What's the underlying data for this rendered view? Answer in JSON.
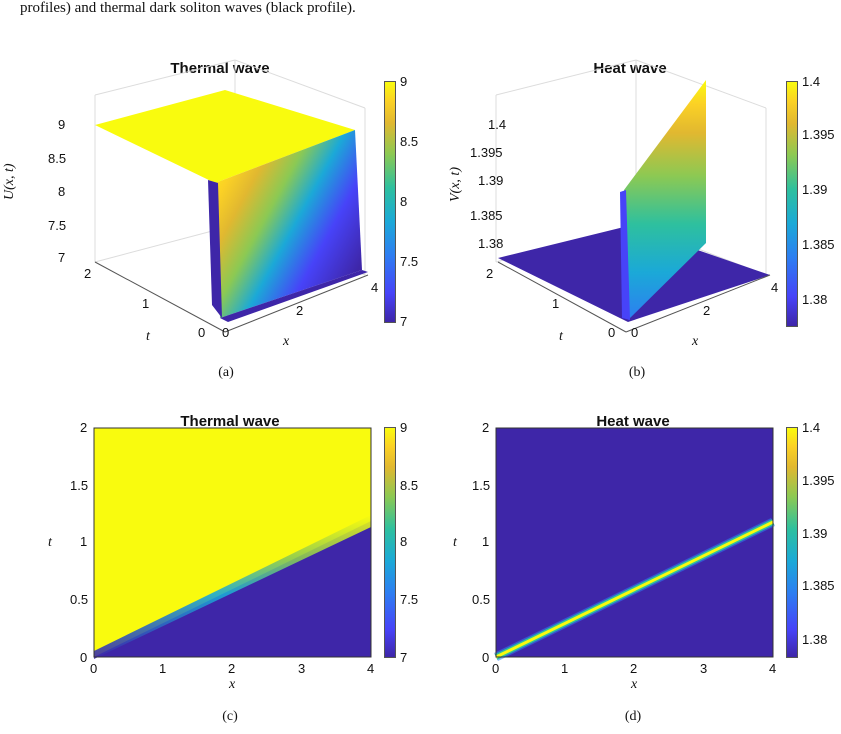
{
  "header_text": "profiles) and thermal dark soliton waves (black profile).",
  "colormap": [
    "#3e26a8",
    "#4743f8",
    "#2d7ef1",
    "#1ba9d7",
    "#2ec09e",
    "#8cc953",
    "#e1b830",
    "#fbd125",
    "#f9fb0e"
  ],
  "chart_data": [
    {
      "type": "heatmap",
      "panel": "a",
      "view": "3d-surface",
      "title": "Thermal wave",
      "xlabel": "x",
      "ylabel": "t",
      "zlabel": "U(x, t)",
      "x_ticks": [
        "0",
        "2",
        "4"
      ],
      "y_ticks": [
        "0",
        "1",
        "2"
      ],
      "z_ticks": [
        "7",
        "7.5",
        "8",
        "8.5",
        "9"
      ],
      "colorbar_ticks": [
        "7",
        "7.5",
        "8",
        "8.5",
        "9"
      ],
      "zlim": [
        7,
        9
      ],
      "caption": "(a)"
    },
    {
      "type": "heatmap",
      "panel": "b",
      "view": "3d-surface",
      "title": "Heat wave",
      "xlabel": "x",
      "ylabel": "t",
      "zlabel": "V(x, t)",
      "x_ticks": [
        "0",
        "2",
        "4"
      ],
      "y_ticks": [
        "0",
        "1",
        "2"
      ],
      "z_ticks": [
        "1.38",
        "1.385",
        "1.39",
        "1.395",
        "1.4"
      ],
      "colorbar_ticks": [
        "1.38",
        "1.385",
        "1.39",
        "1.395",
        "1.4"
      ],
      "zlim": [
        1.378,
        1.4
      ],
      "caption": "(b)"
    },
    {
      "type": "heatmap",
      "panel": "c",
      "view": "2d-top",
      "title": "Thermal wave",
      "xlabel": "x",
      "ylabel": "t",
      "x_ticks": [
        "0",
        "1",
        "2",
        "3",
        "4"
      ],
      "y_ticks": [
        "0",
        "0.5",
        "1",
        "1.5",
        "2"
      ],
      "colorbar_ticks": [
        "7",
        "7.5",
        "8",
        "8.5",
        "9"
      ],
      "xlim": [
        0,
        4
      ],
      "ylim": [
        0,
        2
      ],
      "front_slope_t_per_x": 0.285,
      "caption": "(c)"
    },
    {
      "type": "heatmap",
      "panel": "d",
      "view": "2d-top",
      "title": "Heat wave",
      "xlabel": "x",
      "ylabel": "t",
      "x_ticks": [
        "0",
        "1",
        "2",
        "3",
        "4"
      ],
      "y_ticks": [
        "0",
        "0.5",
        "1",
        "1.5",
        "2"
      ],
      "colorbar_ticks": [
        "1.38",
        "1.385",
        "1.39",
        "1.395",
        "1.4"
      ],
      "xlim": [
        0,
        4
      ],
      "ylim": [
        0,
        2
      ],
      "front_slope_t_per_x": 0.285,
      "caption": "(d)"
    }
  ]
}
